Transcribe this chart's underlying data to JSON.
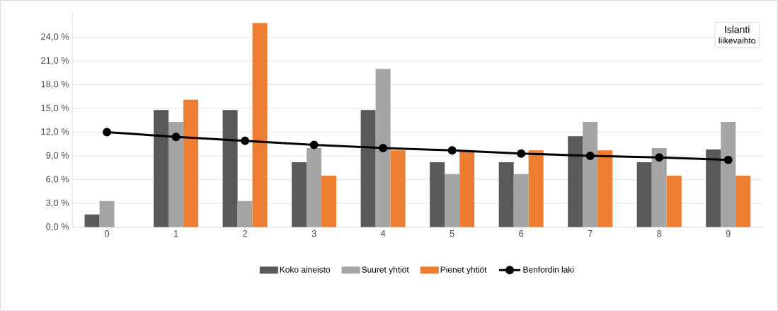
{
  "chart_data": {
    "type": "bar",
    "categories": [
      "0",
      "1",
      "2",
      "3",
      "4",
      "5",
      "6",
      "7",
      "8",
      "9"
    ],
    "series": [
      {
        "name": "Koko aineisto",
        "color": "#595959",
        "type": "bar",
        "values": [
          1.6,
          14.8,
          14.8,
          8.2,
          14.8,
          8.2,
          8.2,
          11.5,
          8.2,
          9.8
        ]
      },
      {
        "name": "Suuret yhtiöt",
        "color": "#a5a5a5",
        "type": "bar",
        "values": [
          3.3,
          13.3,
          3.3,
          10.0,
          20.0,
          6.7,
          6.7,
          13.3,
          10.0,
          13.3
        ]
      },
      {
        "name": "Pienet yhtiöt",
        "color": "#ed7d31",
        "type": "bar",
        "values": [
          0,
          16.1,
          25.8,
          6.5,
          9.7,
          9.7,
          9.7,
          9.7,
          6.5,
          6.5
        ]
      },
      {
        "name": "Benfordin laki",
        "color": "#000000",
        "type": "line",
        "values": [
          12.0,
          11.4,
          10.9,
          10.4,
          10.0,
          9.7,
          9.3,
          9.0,
          8.8,
          8.5
        ]
      }
    ],
    "ylim": [
      0,
      27
    ],
    "yticks": [
      {
        "value": 0,
        "label": "0,0 %"
      },
      {
        "value": 3,
        "label": "3,0 %"
      },
      {
        "value": 6,
        "label": "6,0 %"
      },
      {
        "value": 9,
        "label": "9,0 %"
      },
      {
        "value": 12,
        "label": "12,0 %"
      },
      {
        "value": 15,
        "label": "15,0 %"
      },
      {
        "value": 18,
        "label": "18,0 %"
      },
      {
        "value": 21,
        "label": "21,0 %"
      },
      {
        "value": 24,
        "label": "24,0 %"
      }
    ],
    "grid": "y",
    "legend": "bottom",
    "marker": "circle",
    "line_style": "solid",
    "annotations": [
      "Islanti",
      "liikevaihto"
    ]
  }
}
